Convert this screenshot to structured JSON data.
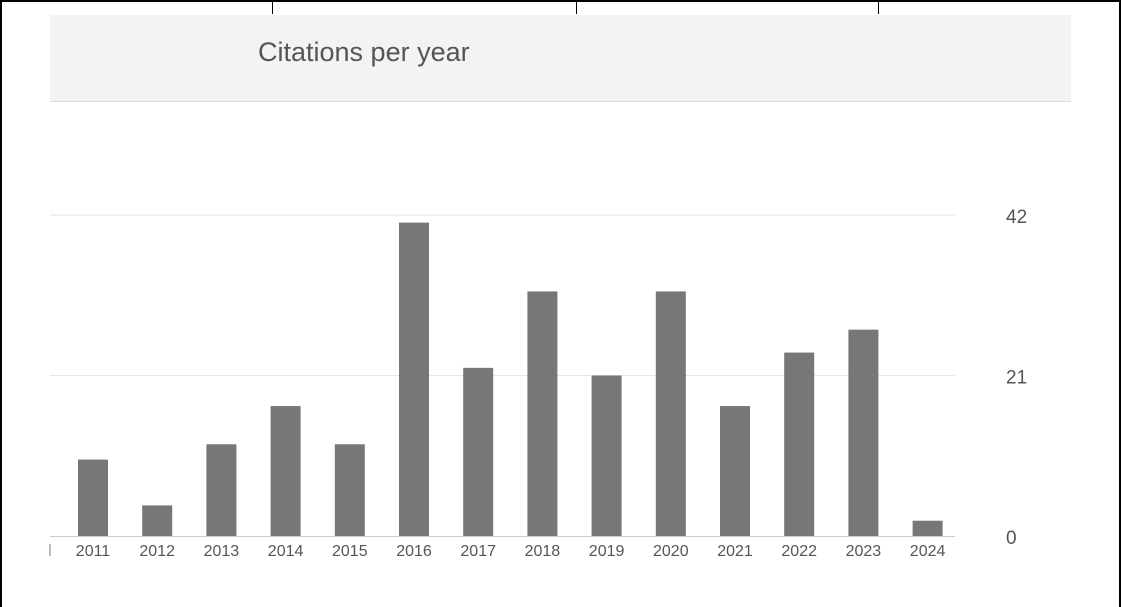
{
  "chart_data": {
    "type": "bar",
    "title": "Citations per year",
    "xlabel": "",
    "ylabel": "",
    "categories": [
      "2011",
      "2012",
      "2013",
      "2014",
      "2015",
      "2016",
      "2017",
      "2018",
      "2019",
      "2020",
      "2021",
      "2022",
      "2023",
      "2024"
    ],
    "values": [
      10,
      4,
      12,
      17,
      12,
      41,
      22,
      32,
      21,
      32,
      17,
      24,
      27,
      2
    ],
    "yticks": [
      0,
      21,
      42
    ],
    "ylim": [
      0,
      42
    ],
    "grid": true,
    "y_axis_side": "right",
    "bar_color": "#777777",
    "grid_color": "#e6e6e6"
  }
}
